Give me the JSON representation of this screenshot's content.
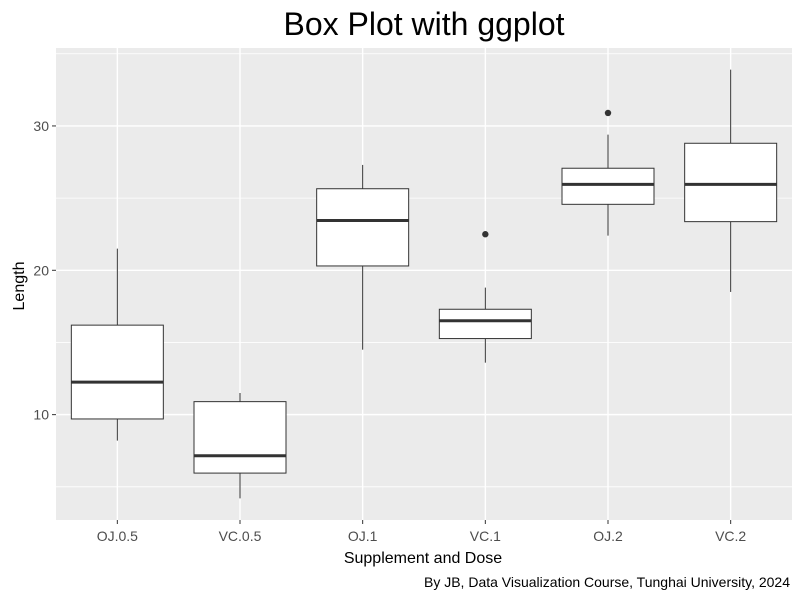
{
  "chart_data": {
    "type": "boxplot",
    "title": "Box Plot with ggplot",
    "xlabel": "Supplement and Dose",
    "ylabel": "Length",
    "caption": "By JB, Data Visualization Course, Tunghai University, 2024",
    "categories": [
      "OJ.0.5",
      "VC.0.5",
      "OJ.1",
      "VC.1",
      "OJ.2",
      "VC.2"
    ],
    "boxes": [
      {
        "min": 8.2,
        "q1": 9.7,
        "median": 12.25,
        "q3": 16.2,
        "max": 21.5,
        "outliers": []
      },
      {
        "min": 4.2,
        "q1": 5.95,
        "median": 7.15,
        "q3": 10.9,
        "max": 11.5,
        "outliers": []
      },
      {
        "min": 14.5,
        "q1": 20.3,
        "median": 23.45,
        "q3": 25.65,
        "max": 27.3,
        "outliers": []
      },
      {
        "min": 13.6,
        "q1": 15.27,
        "median": 16.5,
        "q3": 17.3,
        "max": 18.8,
        "outliers": [
          22.5
        ]
      },
      {
        "min": 22.4,
        "q1": 24.57,
        "median": 25.95,
        "q3": 27.07,
        "max": 29.4,
        "outliers": [
          30.9
        ]
      },
      {
        "min": 18.5,
        "q1": 23.37,
        "median": 25.95,
        "q3": 28.8,
        "max": 33.9,
        "outliers": []
      }
    ],
    "ylim": [
      2.7,
      35.4
    ],
    "yticks": [
      10,
      20,
      30
    ],
    "grid": true,
    "colors": {
      "panel": "#ebebeb",
      "grid": "#ffffff",
      "box_fill": "#ffffff",
      "box_line": "#333333"
    }
  }
}
